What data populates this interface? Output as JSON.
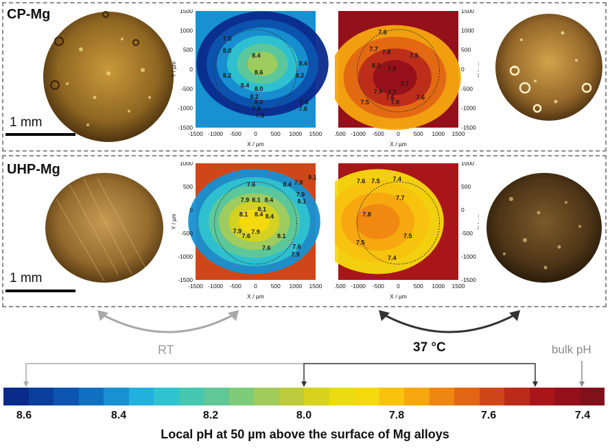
{
  "rows": [
    {
      "label": "CP-Mg",
      "scale_bar": "1 mm",
      "left_map": {
        "y_ticks": [
          "1500",
          "1000",
          "500",
          "0",
          "-500",
          "-1000",
          "-1500"
        ],
        "x_ticks": [
          "-1500",
          "-1000",
          "-500",
          "0",
          "500",
          "1000",
          "1500"
        ],
        "ylabel": "Y / µm",
        "xlabel": "X / µm",
        "contours": [
          "7.8",
          "8.0",
          "8.2",
          "8.4",
          "8.6",
          "8.4",
          "8.2",
          "8.4",
          "8.2",
          "8.0",
          "7.8",
          "7.6",
          "7.8",
          "7.6",
          "8.0"
        ]
      },
      "right_map": {
        "y_ticks": [
          "1500",
          "1000",
          "500",
          "0",
          "-500",
          "-1000",
          "-1500"
        ],
        "x_ticks": [
          "-1500",
          "-1000",
          "-500",
          "0",
          "500",
          "1000",
          "1500"
        ],
        "ylabel": "Y / µm",
        "xlabel": "X / µm",
        "contours": [
          "7.6",
          "7.7",
          "7.8",
          "8.0",
          "7.9",
          "7.7",
          "7.6",
          "7.9",
          "7.7",
          "7.8",
          "7.6",
          "7.5",
          "7.5"
        ]
      }
    },
    {
      "label": "UHP-Mg",
      "scale_bar": "1 mm",
      "left_map": {
        "y_ticks": [
          "1000",
          "500",
          "0",
          "-500",
          "-1000",
          "-1500"
        ],
        "x_ticks": [
          "-1500",
          "-1000",
          "-500",
          "0",
          "500",
          "1000",
          "1500"
        ],
        "ylabel": "Y / µm",
        "xlabel": "X / µm",
        "contours": [
          "8.1",
          "8.4",
          "7.6",
          "7.9",
          "8.1",
          "8.4",
          "8.1",
          "8.4",
          "8.1",
          "8.4",
          "7.9",
          "7.6",
          "7.9",
          "7.6",
          "8.1",
          "7.9",
          "7.6",
          "7.9",
          "7.9",
          "8.1"
        ]
      },
      "right_map": {
        "y_ticks": [
          "1000",
          "500",
          "0",
          "-500",
          "-1000",
          "-1500"
        ],
        "x_ticks": [
          "-1500",
          "-1000",
          "-500",
          "0",
          "500",
          "1000",
          "1500"
        ],
        "ylabel": "Y / µm",
        "xlabel": "X / µm",
        "contours": [
          "7.6",
          "7.5",
          "7.4",
          "7.7",
          "7.8",
          "7.5",
          "7.5",
          "7.4"
        ]
      }
    }
  ],
  "arrows": {
    "rt_label": "RT",
    "hot_label": "37 °C",
    "bulk_label": "bulk pH"
  },
  "colorbar": {
    "ticks": [
      "8.6",
      "8.4",
      "8.2",
      "8.0",
      "7.8",
      "7.6",
      "7.4"
    ],
    "caption": "Local pH at 50 µm above the surface of Mg alloys",
    "colors": [
      "#0a2a8c",
      "#0b3f9e",
      "#0d55b0",
      "#1170c2",
      "#1791d2",
      "#21b1df",
      "#2fc3d0",
      "#45c7b0",
      "#5fc896",
      "#7ecb7a",
      "#a1cc5c",
      "#bccc3c",
      "#d6d21e",
      "#eadb12",
      "#f5d90f",
      "#f8c20f",
      "#f6a60f",
      "#ef8612",
      "#e26614",
      "#cf4718",
      "#bb2b1a",
      "#a8161a",
      "#94101a",
      "#82101a"
    ]
  }
}
